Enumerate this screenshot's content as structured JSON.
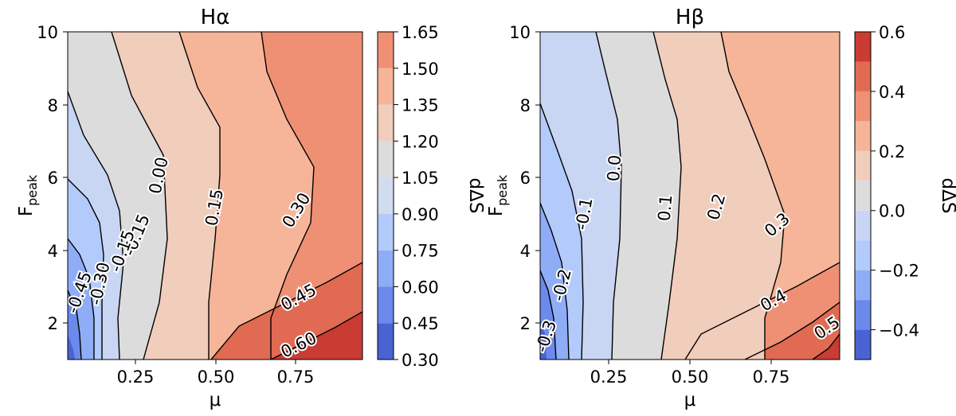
{
  "chart_data": [
    {
      "type": "heatmap",
      "subtype": "filled-contour",
      "title": "Hα",
      "xlabel": "μ",
      "ylabel_main": "F",
      "ylabel_sub": "peak",
      "xlim": [
        0.04,
        0.96
      ],
      "ylim": [
        1,
        10
      ],
      "xticks": [
        "0.25",
        "0.50",
        "0.75"
      ],
      "yticks": [
        "2",
        "4",
        "6",
        "8",
        "10"
      ],
      "colorbar": {
        "label": "dΔS",
        "levels": [
          0.3,
          0.45,
          0.6,
          0.75,
          0.9,
          1.05,
          1.2,
          1.35,
          1.5,
          1.65
        ],
        "ticks": [
          "0.30",
          "0.45",
          "0.60",
          "0.75",
          "0.90",
          "1.05",
          "1.20",
          "1.35",
          "1.50",
          "1.65"
        ],
        "colors": [
          "#4a63d3",
          "#6b8aeb",
          "#8fadf7",
          "#b3cbfb",
          "#d2dcef",
          "#dddcdc",
          "#f1cdbc",
          "#f6b599",
          "#ef9075",
          "#e06b52",
          "#c93b33"
        ]
      },
      "contour_labels": [
        "-0.45",
        "-0.30",
        "-0.15",
        "-0.15",
        "0.00",
        "0.15",
        "0.30",
        "0.45",
        "0.60"
      ]
    },
    {
      "type": "heatmap",
      "subtype": "filled-contour",
      "title": "Hβ",
      "xlabel": "μ",
      "ylabel_main": "F",
      "ylabel_sub": "peak",
      "xlim": [
        0.04,
        0.96
      ],
      "ylim": [
        1,
        10
      ],
      "xticks": [
        "0.25",
        "0.50",
        "0.75"
      ],
      "yticks": [
        "2",
        "4",
        "6",
        "8",
        "10"
      ],
      "colorbar": {
        "label": "dΔS",
        "levels": [
          -0.5,
          -0.4,
          -0.3,
          -0.2,
          -0.1,
          0.0,
          0.1,
          0.2,
          0.3,
          0.4,
          0.5,
          0.6
        ],
        "ticks": [
          "−0.4",
          "−0.2",
          "0.0",
          "0.2",
          "0.4",
          "0.6"
        ],
        "colors": [
          "#4a63d3",
          "#6b8aeb",
          "#8fadf7",
          "#b3cbfb",
          "#c8d6f3",
          "#dddcdc",
          "#f1cdbc",
          "#f6b599",
          "#ef9075",
          "#e06b52",
          "#c93b33"
        ]
      },
      "contour_labels": [
        "-0.3",
        "-0.2",
        "-0.1",
        "0.0",
        "0.1",
        "0.2",
        "0.3",
        "0.4",
        "0.5"
      ]
    }
  ]
}
